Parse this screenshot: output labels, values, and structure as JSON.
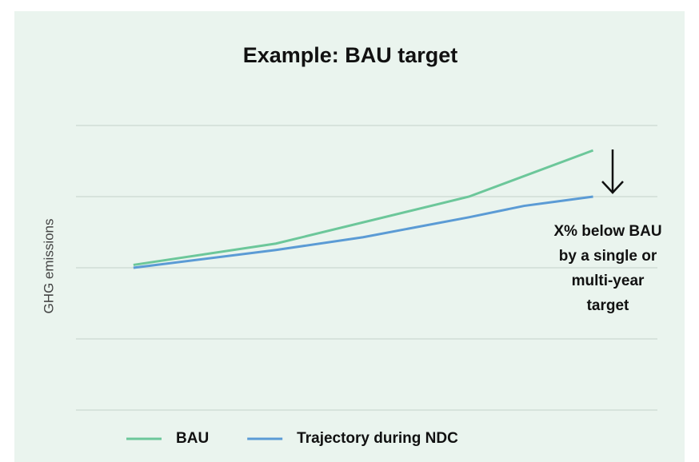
{
  "chart_data": {
    "type": "line",
    "title": "Example: BAU target",
    "y_label": "GHG emissions",
    "annotation": [
      "X% below BAU",
      "by a single or",
      "multi-year",
      "target"
    ],
    "xlim": [
      -1.25,
      11.4
    ],
    "ylim": [
      0,
      4
    ],
    "yticks": [
      0,
      1,
      2,
      3,
      4
    ],
    "grid": true,
    "series": [
      {
        "name": "BAU",
        "color": "#6cc79a",
        "x": [
          0,
          3.1,
          7.3,
          10
        ],
        "values": [
          2.04,
          2.34,
          3.0,
          3.65
        ]
      },
      {
        "name": "Trajectory during NDC",
        "color": "#5b9bd5",
        "x": [
          0,
          3.1,
          5,
          7.3,
          8.5,
          10
        ],
        "values": [
          2.0,
          2.25,
          2.43,
          2.71,
          2.87,
          3.0
        ]
      }
    ]
  }
}
